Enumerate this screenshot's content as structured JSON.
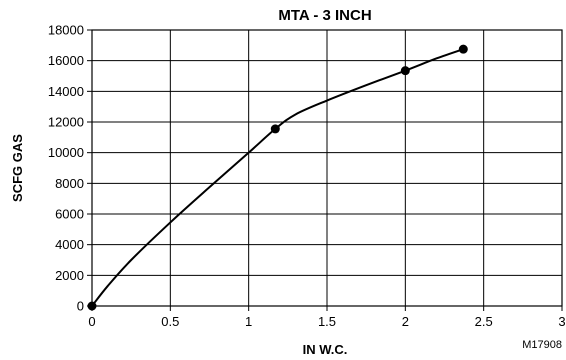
{
  "chart_data": {
    "type": "line",
    "title": "MTA - 3 INCH",
    "xlabel": "IN W.C.",
    "ylabel": "SCFG GAS",
    "figure_id": "M17908",
    "xlim": [
      0,
      3
    ],
    "ylim": [
      0,
      18000
    ],
    "x_ticks": [
      "0",
      "0.5",
      "1",
      "1.5",
      "2",
      "2.5",
      "3"
    ],
    "y_ticks": [
      "0",
      "2000",
      "4000",
      "6000",
      "8000",
      "10000",
      "12000",
      "14000",
      "16000",
      "18000"
    ],
    "grid": true,
    "line_color": "#000000",
    "marker_color": "#000000",
    "series": [
      {
        "markers": [
          {
            "x": 0,
            "y": 0
          },
          {
            "x": 1.17,
            "y": 11550
          },
          {
            "x": 2.0,
            "y": 15350
          },
          {
            "x": 2.37,
            "y": 16750
          }
        ],
        "curve": [
          {
            "x": 0,
            "y": 0
          },
          {
            "x": 0.1,
            "y": 1300
          },
          {
            "x": 0.25,
            "y": 3000
          },
          {
            "x": 0.5,
            "y": 5450
          },
          {
            "x": 0.75,
            "y": 7750
          },
          {
            "x": 1.0,
            "y": 10000
          },
          {
            "x": 1.17,
            "y": 11550
          },
          {
            "x": 1.3,
            "y": 12500
          },
          {
            "x": 1.5,
            "y": 13400
          },
          {
            "x": 1.75,
            "y": 14400
          },
          {
            "x": 2.0,
            "y": 15350
          },
          {
            "x": 2.2,
            "y": 16150
          },
          {
            "x": 2.37,
            "y": 16750
          }
        ]
      }
    ]
  }
}
